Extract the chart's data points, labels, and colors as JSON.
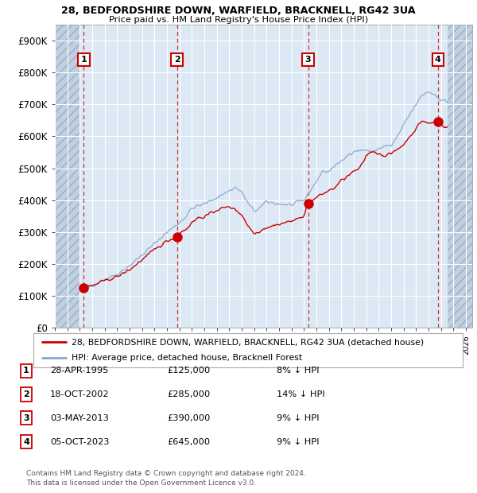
{
  "title_line1": "28, BEDFORDSHIRE DOWN, WARFIELD, BRACKNELL, RG42 3UA",
  "title_line2": "Price paid vs. HM Land Registry's House Price Index (HPI)",
  "ylim": [
    0,
    950000
  ],
  "yticks": [
    0,
    100000,
    200000,
    300000,
    400000,
    500000,
    600000,
    700000,
    800000,
    900000
  ],
  "ytick_labels": [
    "£0",
    "£100K",
    "£200K",
    "£300K",
    "£400K",
    "£500K",
    "£600K",
    "£700K",
    "£800K",
    "£900K"
  ],
  "xlim_start": 1993.0,
  "xlim_end": 2026.5,
  "xticks": [
    1993,
    1994,
    1995,
    1996,
    1997,
    1998,
    1999,
    2000,
    2001,
    2002,
    2003,
    2004,
    2005,
    2006,
    2007,
    2008,
    2009,
    2010,
    2011,
    2012,
    2013,
    2014,
    2015,
    2016,
    2017,
    2018,
    2019,
    2020,
    2021,
    2022,
    2023,
    2024,
    2025,
    2026
  ],
  "plot_bg_color": "#dce9f5",
  "hatch_color": "#c0d0e0",
  "grid_color": "#ffffff",
  "red_line_color": "#cc0000",
  "blue_line_color": "#88aacc",
  "purchases": [
    {
      "num": 1,
      "year": 1995.32,
      "price": 125000
    },
    {
      "num": 2,
      "year": 2002.8,
      "price": 285000
    },
    {
      "num": 3,
      "year": 2013.33,
      "price": 390000
    },
    {
      "num": 4,
      "year": 2023.75,
      "price": 645000
    }
  ],
  "legend_line1": "28, BEDFORDSHIRE DOWN, WARFIELD, BRACKNELL, RG42 3UA (detached house)",
  "legend_line2": "HPI: Average price, detached house, Bracknell Forest",
  "footer": "Contains HM Land Registry data © Crown copyright and database right 2024.\nThis data is licensed under the Open Government Licence v3.0.",
  "table_rows": [
    {
      "num": 1,
      "date": "28-APR-1995",
      "price": "£125,000",
      "pct": "8% ↓ HPI"
    },
    {
      "num": 2,
      "date": "18-OCT-2002",
      "price": "£285,000",
      "pct": "14% ↓ HPI"
    },
    {
      "num": 3,
      "date": "03-MAY-2013",
      "price": "£390,000",
      "pct": "9% ↓ HPI"
    },
    {
      "num": 4,
      "date": "05-OCT-2023",
      "price": "£645,000",
      "pct": "9% ↓ HPI"
    }
  ]
}
